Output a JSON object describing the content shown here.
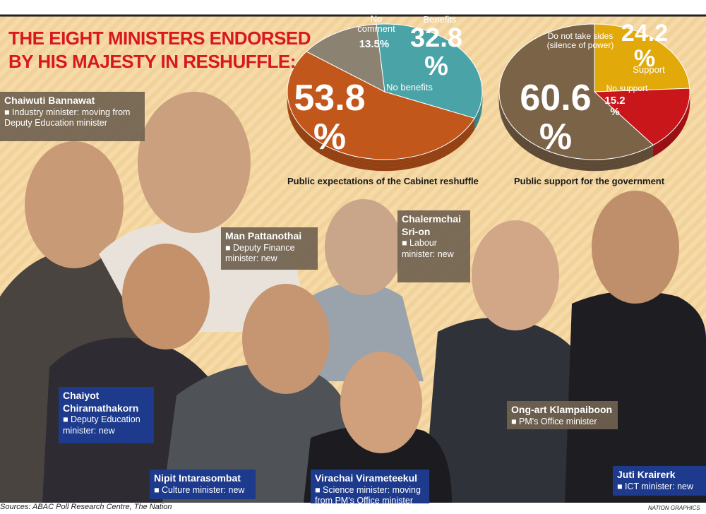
{
  "title": [
    "THE EIGHT MINISTERS ENDORSED",
    "BY HIS MAJESTY IN RESHUFFLE:"
  ],
  "chart_data": [
    {
      "type": "pie",
      "title": "Public expectations of the Cabinet reshuffle",
      "categories": [
        "Benefits",
        "No benefits",
        "No comment"
      ],
      "values": [
        32.8,
        53.8,
        13.5
      ],
      "value_labels": [
        "32.8 %",
        "53.8 %",
        "13.5%"
      ],
      "colors": [
        "#4aa3a6",
        "#c2571c",
        "#8c8272"
      ]
    },
    {
      "type": "pie",
      "title": "Public support for the government",
      "categories": [
        "Support",
        "No support",
        "Do not take sides (silence of power)"
      ],
      "values": [
        24.2,
        15.2,
        60.6
      ],
      "value_labels": [
        "24.2 %",
        "15.2 %",
        "60.6 %"
      ],
      "colors": [
        "#e2a90a",
        "#c8161b",
        "#7b6348"
      ]
    }
  ],
  "ministers": [
    {
      "name": "Chaiwuti Bannawat",
      "role": "■ Industry minister: moving from Deputy Education minister"
    },
    {
      "name": "Man Pattanothai",
      "role": "■ Deputy Finance minister: new"
    },
    {
      "name": "Chalermchai Sri-on",
      "role": "■ Labour minister: new"
    },
    {
      "name": "Chaiyot Chiramathakorn",
      "role": "■ Deputy Education minister: new"
    },
    {
      "name": "Ong-art Klampaiboon",
      "role": "■ PM's Office minister"
    },
    {
      "name": "Nipit Intarasombat",
      "role": "■ Culture minister: new"
    },
    {
      "name": "Virachai Virameteekul",
      "role": "■ Science minister: moving from PM's Office minister"
    },
    {
      "name": "Juti Krairerk",
      "role": "■ ICT minister: new"
    }
  ],
  "source": "Sources: ABAC Poll Research Centre, The Nation",
  "credit": "NATION GRAPHICS"
}
